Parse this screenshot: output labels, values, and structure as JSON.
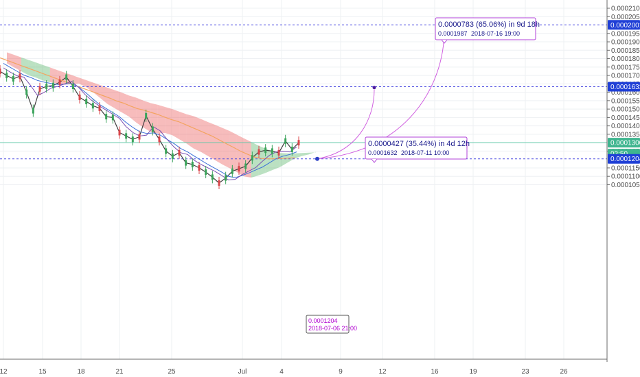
{
  "chart_data": {
    "type": "line",
    "xlabel": "",
    "ylabel": "",
    "x_ticks": [
      "12",
      "15",
      "18",
      "21",
      "25",
      "Jul",
      "4",
      "9",
      "12",
      "16",
      "19",
      "23",
      "26"
    ],
    "y_ticks": [
      "0.0002100",
      "0.0002050",
      "0.0002001",
      "0.0001950",
      "0.0001900",
      "0.0001850",
      "0.0001800",
      "0.0001750",
      "0.0001700",
      "0.0001650",
      "0.0001633",
      "0.0001600",
      "0.0001550",
      "0.0001500",
      "0.0001450",
      "0.0001400",
      "0.0001350",
      "0.0001300",
      "0.0001250",
      "0.0001204",
      "0.0001150",
      "0.0001100",
      "0.0001050"
    ],
    "ylim": [
      0.000104,
      0.000214
    ],
    "grid": true,
    "price_badges": {
      "level_top": "0.0002001",
      "level_mid": "0.0001633",
      "current": "0.0001300",
      "countdown": "02:50",
      "level_low": "0.0001204"
    },
    "projections": [
      {
        "headline": "0.0000427 (35.44%) in 4d 12h",
        "price": "0.0001632",
        "date": "2018-07-11  10:00"
      },
      {
        "headline": "0.0000783 (65.06%) in 9d 18h",
        "price": "0.0001987",
        "date": "2018-07-16  19:00"
      }
    ],
    "anchor_label": {
      "price": "0.0001204",
      "date": "2018-07-06 21:00"
    },
    "series": [
      {
        "values": [
          0.0001725,
          0.00017,
          0.000168,
          0.0001695,
          0.00016,
          0.000149,
          0.000162,
          0.0001635,
          0.000164,
          0.000166,
          0.000169,
          0.0001635,
          0.000157,
          0.0001545,
          0.000152,
          0.0001505,
          0.0001455,
          0.000145,
          0.000136,
          0.000134,
          0.000132,
          0.0001335,
          0.000146,
          0.000138,
          0.000132,
          0.000125,
          0.000122,
          0.000124,
          0.000118,
          0.000117,
          0.000115,
          0.0001125,
          0.0001095,
          0.000106,
          0.000109,
          0.000113,
          0.0001145,
          0.000116,
          0.000121,
          0.0001245,
          0.0001255,
          0.000125,
          0.000124,
          0.000131,
          0.000126,
          0.00013
        ]
      },
      {
        "values": [
          0.0001805,
          0.000179,
          0.0001775,
          0.000176,
          0.0001745,
          0.000173,
          0.0001715,
          0.00017,
          0.0001685,
          0.000167,
          0.0001655,
          0.000164,
          0.0001625,
          0.000161,
          0.0001595,
          0.000158,
          0.0001565,
          0.0001548,
          0.0001535,
          0.0001518,
          0.0001503,
          0.0001493,
          0.000148,
          0.0001468,
          0.0001452,
          0.0001437,
          0.0001425,
          0.0001408,
          0.000139,
          0.0001373,
          0.0001355,
          0.0001337,
          0.0001315,
          0.0001293,
          0.0001272,
          0.000125,
          0.0001232,
          0.0001215,
          0.0001206,
          0.0001204,
          0.0001204,
          0.0001206,
          0.0001208,
          0.000121
        ]
      },
      {
        "values": [
          0.0001772,
          0.0001748,
          0.0001725,
          0.0001702,
          0.0001688,
          0.000167,
          0.000166,
          0.0001652,
          0.0001646,
          0.0001648,
          0.0001652,
          0.0001632,
          0.00016,
          0.0001565,
          0.000153,
          0.0001505,
          0.000148,
          0.0001455,
          0.000142,
          0.000139,
          0.0001365,
          0.0001355,
          0.0001358,
          0.0001345,
          0.000132,
          0.0001295,
          0.0001265,
          0.0001245,
          0.000122,
          0.0001195,
          0.000117,
          0.0001148,
          0.0001125,
          0.00011,
          0.0001092,
          0.0001105,
          0.000112,
          0.0001138,
          0.0001155,
          0.000118,
          0.0001205,
          0.000122,
          0.000123,
          0.0001245
        ]
      },
      {
        "values": [
          0.0001745,
          0.000172,
          0.0001698,
          0.000169,
          0.000164,
          0.000158,
          0.00016,
          0.0001625,
          0.0001635,
          0.000165,
          0.0001665,
          0.000163,
          0.0001585,
          0.000155,
          0.000152,
          0.0001495,
          0.000147,
          0.0001445,
          0.0001395,
          0.000136,
          0.000134,
          0.0001345,
          0.0001395,
          0.000137,
          0.000132,
          0.0001275,
          0.000124,
          0.000123,
          0.0001195,
          0.000117,
          0.000115,
          0.000113,
          0.0001105,
          0.0001078,
          0.0001082,
          0.000111,
          0.0001132,
          0.0001152,
          0.000119,
          0.0001225,
          0.0001245,
          0.0001248,
          0.0001245,
          0.0001275
        ]
      }
    ]
  }
}
